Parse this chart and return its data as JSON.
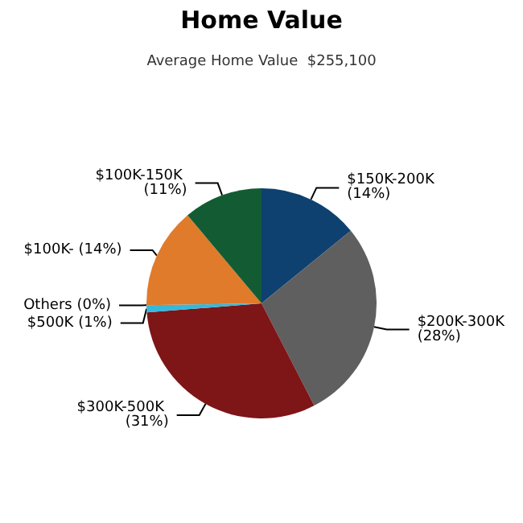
{
  "chart_data": {
    "type": "pie",
    "title": "Home Value",
    "subtitle": "Average Home Value  $255,100",
    "categories": [
      "$150K-200K",
      "$200K-300K",
      "$300K-500K",
      "$500K",
      "Others",
      "$100K-",
      "$100K-150K"
    ],
    "values": [
      14,
      28,
      31,
      1,
      0,
      14,
      11
    ],
    "value_labels": [
      "(14%)",
      "(28%)",
      "(31%)",
      "(1%)",
      "(0%)",
      "(14%)",
      "(11%)"
    ],
    "colors": [
      "#0e416f",
      "#5f5f5f",
      "#7e1517",
      "#35b8dc",
      "#9a9a9a",
      "#e07b2b",
      "#135c33"
    ]
  }
}
